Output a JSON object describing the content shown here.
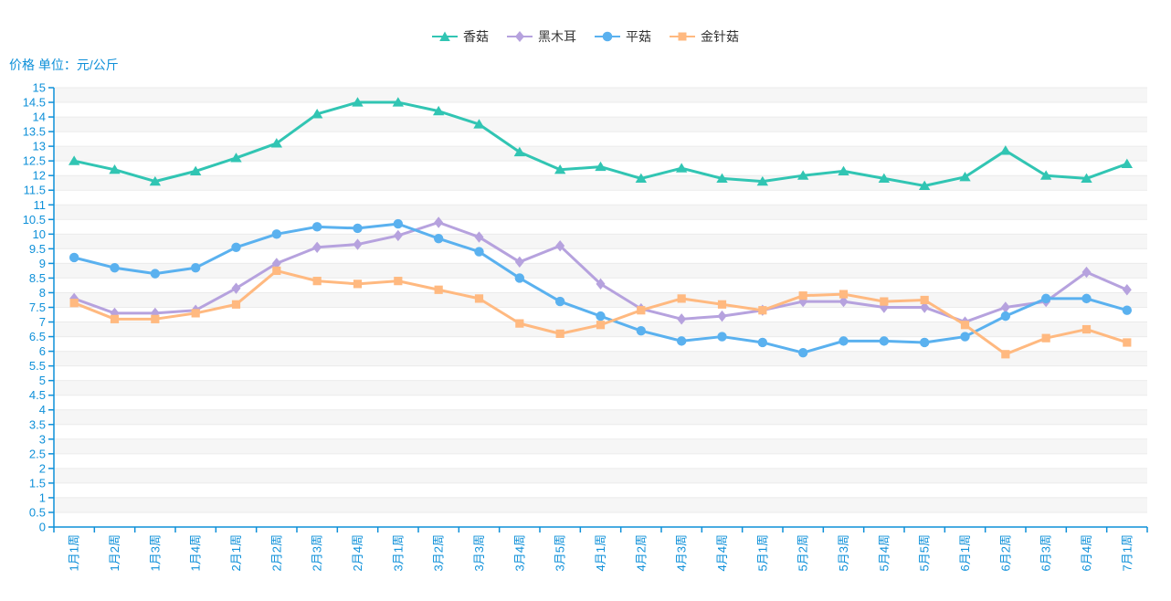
{
  "chart_data": {
    "type": "line",
    "unit_label": "价格 单位：元/公斤",
    "legend_position": "top-center",
    "grid": true,
    "x_label_rotation": 90,
    "ylim": [
      0,
      15
    ],
    "ytick_step": 0.5,
    "ytick_labels": [
      "0",
      "0.5",
      "1",
      "1.5",
      "2",
      "2.5",
      "3",
      "3.5",
      "4",
      "4.5",
      "5",
      "5.5",
      "6",
      "6.5",
      "7",
      "7.5",
      "8",
      "8.5",
      "9",
      "9.5",
      "10",
      "10.5",
      "11",
      "11.5",
      "12",
      "12.5",
      "13",
      "13.5",
      "14",
      "14.5",
      "15"
    ],
    "categories": [
      "1月1周",
      "1月2周",
      "1月3周",
      "1月4周",
      "2月1周",
      "2月2周",
      "2月3周",
      "2月4周",
      "3月1周",
      "3月2周",
      "3月3周",
      "3月4周",
      "3月5周",
      "4月1周",
      "4月2周",
      "4月3周",
      "4月4周",
      "5月1周",
      "5月2周",
      "5月3周",
      "5月4周",
      "5月5周",
      "6月1周",
      "6月2周",
      "6月3周",
      "6月4周",
      "7月1周"
    ],
    "series": [
      {
        "name": "香菇",
        "key": "shiitake",
        "marker": "triangle",
        "color": "#31c5b3",
        "values": [
          12.5,
          12.2,
          11.8,
          12.15,
          12.6,
          13.1,
          14.1,
          14.5,
          14.5,
          14.2,
          13.75,
          12.8,
          12.2,
          12.3,
          11.9,
          12.25,
          11.9,
          11.8,
          12.0,
          12.15,
          11.9,
          11.65,
          11.95,
          12.85,
          12.0,
          11.9,
          12.4
        ]
      },
      {
        "name": "黑木耳",
        "key": "black-fungus",
        "marker": "diamond",
        "color": "#b6a2de",
        "values": [
          7.8,
          7.3,
          7.3,
          7.4,
          8.15,
          9.0,
          9.55,
          9.65,
          9.95,
          10.4,
          9.9,
          9.05,
          9.6,
          8.3,
          7.45,
          7.1,
          7.2,
          7.4,
          7.7,
          7.7,
          7.5,
          7.5,
          7.0,
          7.5,
          7.7,
          8.7,
          8.1
        ]
      },
      {
        "name": "平菇",
        "key": "oyster-mushroom",
        "marker": "circle",
        "color": "#5ab1ef",
        "values": [
          9.2,
          8.85,
          8.65,
          8.85,
          9.55,
          10.0,
          10.25,
          10.2,
          10.35,
          9.85,
          9.4,
          8.5,
          7.7,
          7.2,
          6.7,
          6.35,
          6.5,
          6.3,
          5.95,
          6.35,
          6.35,
          6.3,
          6.5,
          7.2,
          7.8,
          7.8,
          7.4
        ]
      },
      {
        "name": "金针菇",
        "key": "enoki",
        "marker": "square",
        "color": "#ffb980",
        "values": [
          7.65,
          7.1,
          7.1,
          7.3,
          7.6,
          8.75,
          8.4,
          8.3,
          8.4,
          8.1,
          7.8,
          6.95,
          6.6,
          6.9,
          7.4,
          7.8,
          7.6,
          7.4,
          7.9,
          7.95,
          7.7,
          7.75,
          6.9,
          5.9,
          6.45,
          6.75,
          6.3
        ]
      }
    ],
    "colors": {
      "axis": "#0e90d9",
      "grid_line": "#ebebeb",
      "band_gray": "#f6f6f6",
      "band_white": "#ffffff",
      "legend_text": "#333333"
    }
  }
}
